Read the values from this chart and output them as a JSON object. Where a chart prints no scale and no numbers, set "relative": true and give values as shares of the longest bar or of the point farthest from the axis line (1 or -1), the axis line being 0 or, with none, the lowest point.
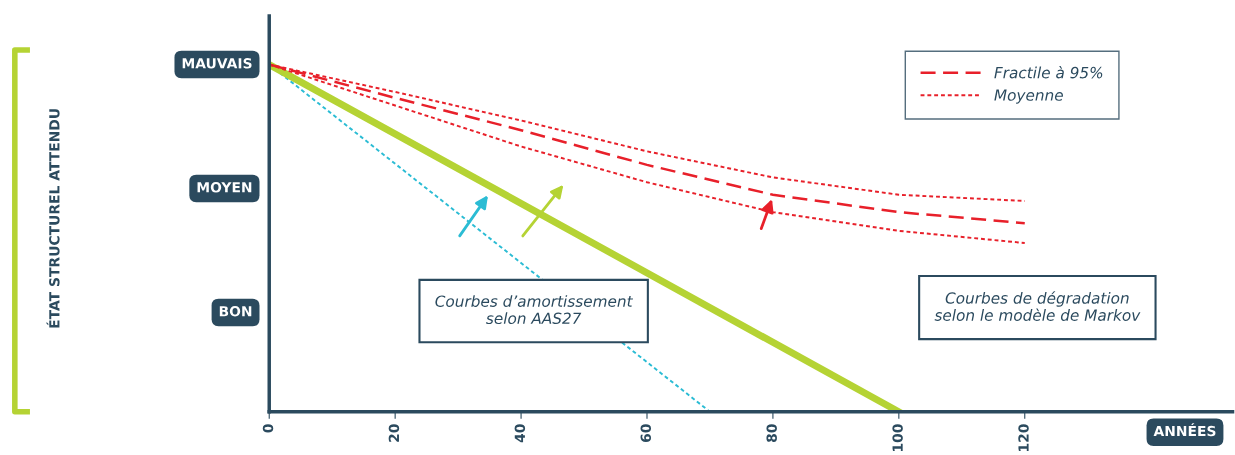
{
  "chart_data": {
    "type": "line",
    "relative": true,
    "xlabel": "ANNÉES",
    "xlim": [
      0,
      153
    ],
    "xticks": [
      0,
      20,
      40,
      60,
      80,
      100,
      120
    ],
    "series": [
      {
        "color": "#2bbcd4",
        "line_style": "dotted",
        "x": [
          0,
          70
        ],
        "values": [
          1,
          0
        ]
      },
      {
        "color": "#b5d334",
        "line_style": "solid",
        "x": [
          0,
          100
        ],
        "values": [
          1,
          0
        ]
      },
      {
        "name": "Fractile à 95%",
        "color": "#e8202a",
        "line_style": "dashed",
        "x": [
          0,
          20,
          40,
          60,
          80,
          100,
          120
        ],
        "values": [
          1,
          0.904,
          0.811,
          0.711,
          0.625,
          0.575,
          0.543
        ]
      },
      {
        "name": "Moyenne",
        "color": "#e8202a",
        "line_style": "dotted",
        "x": [
          0,
          20,
          40,
          60,
          80,
          100,
          120
        ],
        "values": [
          1,
          0.921,
          0.839,
          0.75,
          0.675,
          0.625,
          0.607
        ]
      },
      {
        "color": "#e8202a",
        "line_style": "dotted",
        "x": [
          0,
          20,
          40,
          60,
          80,
          100,
          120
        ],
        "values": [
          1,
          0.882,
          0.764,
          0.661,
          0.575,
          0.521,
          0.486
        ]
      }
    ],
    "annotations": [
      "MAUVAIS",
      "MOYEN",
      "BON",
      "ÉTAT STRUCTUREL ATTENDU",
      "Courbes d’amortissement\nselon AAS27",
      "Courbes de dégradation\nselon le modèle de Markov"
    ],
    "legend": "top right",
    "grid": false
  }
}
